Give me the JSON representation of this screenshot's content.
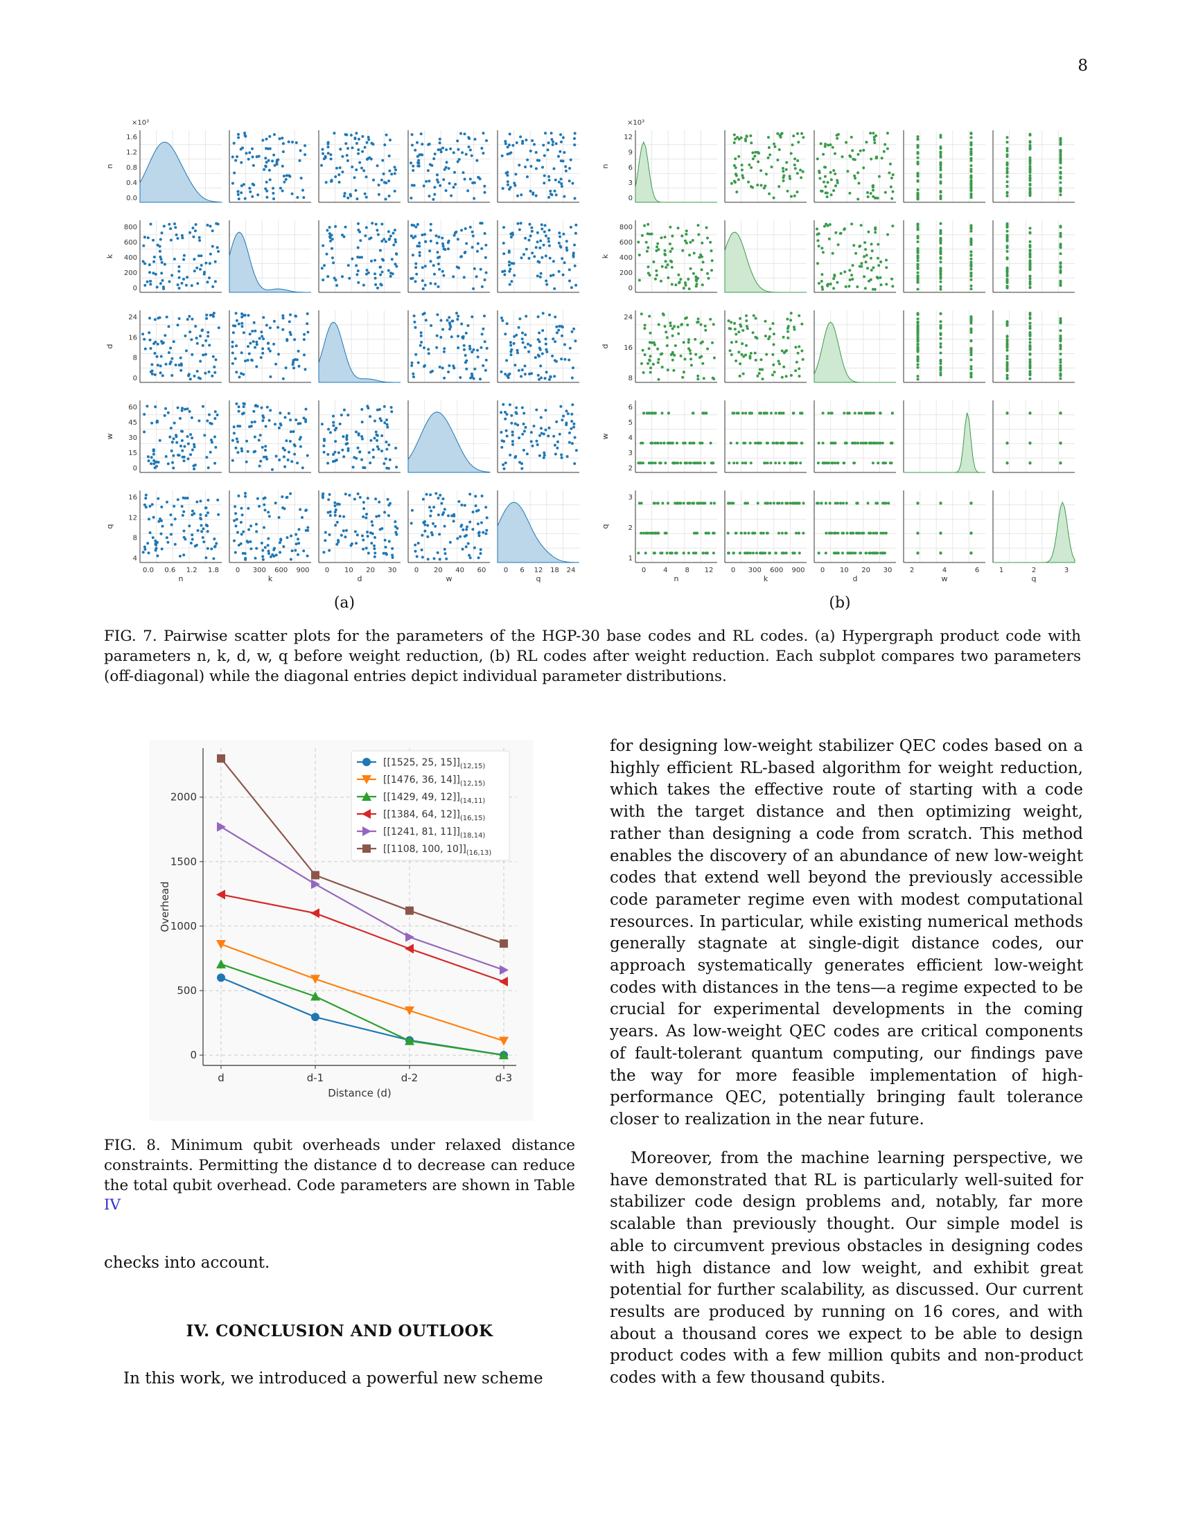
{
  "page_number": "8",
  "figure7": {
    "params": [
      "n",
      "k",
      "d",
      "w",
      "q"
    ],
    "panel_a": {
      "label": "(a)",
      "color": "#1f77b4",
      "fill": "#bcd6ea",
      "ticks": {
        "n": [
          "0.0",
          "0.6",
          "1.2",
          "1.8"
        ],
        "n_y": [
          "0.0",
          "0.4",
          "0.8",
          "1.2",
          "1.6"
        ],
        "k": [
          "0",
          "300",
          "600",
          "900"
        ],
        "k_y": [
          "0",
          "200",
          "400",
          "600",
          "800"
        ],
        "d": [
          "0",
          "10",
          "20",
          "30"
        ],
        "d_y": [
          "0",
          "8",
          "16",
          "24"
        ],
        "w": [
          "0",
          "20",
          "40",
          "60"
        ],
        "w_y": [
          "0",
          "15",
          "30",
          "45",
          "60"
        ],
        "q": [
          "0",
          "6",
          "12",
          "18",
          "24"
        ],
        "q_y": [
          "4",
          "8",
          "12",
          "16"
        ]
      },
      "multiplier": "×10³"
    },
    "panel_b": {
      "label": "(b)",
      "color": "#3a9a4a",
      "fill": "#cfe8d2",
      "ticks": {
        "n": [
          "0",
          "4",
          "8",
          "12"
        ],
        "n_y": [
          "0",
          "3",
          "6",
          "9",
          "12"
        ],
        "k": [
          "0",
          "300",
          "600",
          "900"
        ],
        "k_y": [
          "0",
          "200",
          "400",
          "600",
          "800"
        ],
        "d": [
          "0",
          "10",
          "20",
          "30"
        ],
        "d_y": [
          "8",
          "16",
          "24"
        ],
        "w": [
          "2",
          "4",
          "6"
        ],
        "w_y": [
          "2",
          "3",
          "4",
          "5",
          "6"
        ],
        "q": [
          "1",
          "2",
          "3"
        ],
        "q_y": [
          "1",
          "2",
          "3"
        ]
      },
      "multiplier": "×10³"
    },
    "caption": "FIG. 7.   Pairwise scatter plots for the parameters of the HGP-30 base codes and RL codes. (a) Hypergraph product code with parameters n, k, d, w, q before weight reduction, (b) RL codes after weight reduction. Each subplot compares two parameters (off-diagonal) while the diagonal entries depict individual parameter distributions."
  },
  "figure8": {
    "caption_prefix": "FIG. 8.   Minimum qubit overheads under relaxed distance constraints. Permitting the distance d to decrease can reduce the total qubit overhead. Code parameters are shown in Table ",
    "caption_ref": "IV"
  },
  "chart_data": {
    "type": "line",
    "categories": [
      "d",
      "d-1",
      "d-2",
      "d-3"
    ],
    "xlabel": "Distance (d)",
    "ylabel": "Overhead",
    "ylim": [
      -80,
      2380
    ],
    "yticks": [
      "0",
      "500",
      "1000",
      "1500",
      "2000"
    ],
    "grid": true,
    "legend_position": "top-right",
    "series": [
      {
        "name": "[[1525, 25, 15]]",
        "sub": "(12,15)",
        "color": "#1f77b4",
        "marker": "circle",
        "values": [
          600,
          295,
          115,
          0
        ]
      },
      {
        "name": "[[1476, 36, 14]]",
        "sub": "(12,15)",
        "color": "#ff7f0e",
        "marker": "triangle-down",
        "values": [
          860,
          590,
          345,
          110
        ]
      },
      {
        "name": "[[1429, 49, 12]]",
        "sub": "(14,11)",
        "color": "#2ca02c",
        "marker": "triangle-up",
        "values": [
          705,
          455,
          110,
          0
        ]
      },
      {
        "name": "[[1384, 64, 12]]",
        "sub": "(16,15)",
        "color": "#d62728",
        "marker": "triangle-left",
        "values": [
          1245,
          1100,
          825,
          570
        ]
      },
      {
        "name": "[[1241, 81, 11]]",
        "sub": "(18,14)",
        "color": "#9467bd",
        "marker": "triangle-right",
        "values": [
          1770,
          1325,
          915,
          660
        ]
      },
      {
        "name": "[[1108, 100, 10]]",
        "sub": "(16,13)",
        "color": "#8c564b",
        "marker": "square",
        "values": [
          2300,
          1395,
          1120,
          865
        ]
      }
    ]
  },
  "text": {
    "right_col_p1": "for designing low-weight stabilizer QEC codes based on a highly efficient RL-based algorithm for weight reduction, which takes the effective route of starting with a code with the target distance and then optimizing weight, rather than designing a code from scratch. This method enables the discovery of an abundance of new low-weight codes that extend well beyond the previously accessible code parameter regime even with modest computational resources. In particular, while existing numerical methods generally stagnate at single-digit distance codes, our approach systematically generates efficient low-weight codes with distances in the tens—a regime expected to be crucial for experimental developments in the coming years. As low-weight QEC codes are critical components of fault-tolerant quantum computing, our findings pave the way for more feasible implementation of high-performance QEC, potentially bringing fault tolerance closer to realization in the near future.",
    "right_col_p2": "Moreover, from the machine learning perspective, we have demonstrated that RL is particularly well-suited for stabilizer code design problems and, notably, far more scalable than previously thought. Our simple model is able to circumvent previous obstacles in designing codes with high distance and low weight, and exhibit great potential for further scalability, as discussed. Our current results are produced by running on 16 cores, and with about a thousand cores we expect to be able to design product codes with a few million qubits and non-product codes with a few thousand qubits.",
    "left_col_p1": "checks into account.",
    "section_heading": "IV.   CONCLUSION AND OUTLOOK",
    "left_col_p2": "In this work, we introduced a powerful new scheme"
  }
}
